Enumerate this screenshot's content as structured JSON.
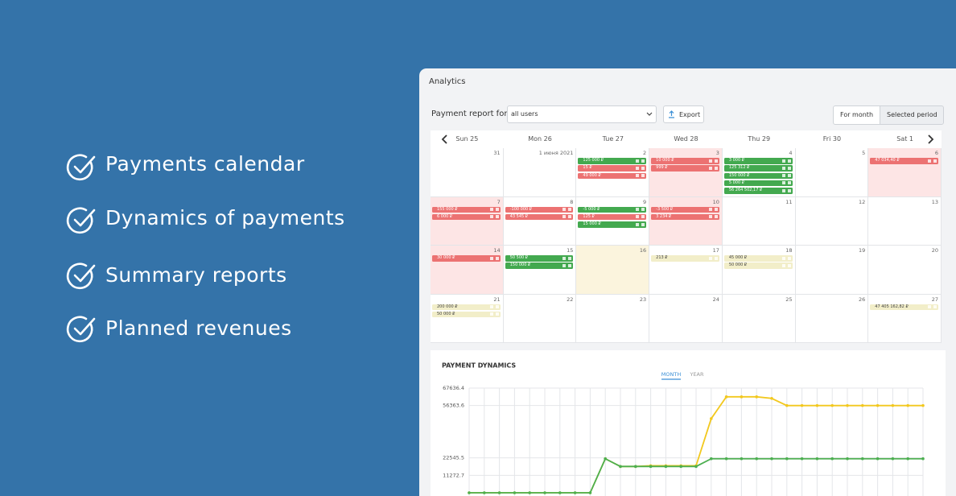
{
  "features": [
    "Payments calendar",
    "Dynamics of payments",
    "Summary reports",
    "Planned revenues"
  ],
  "panel": {
    "title": "Analytics",
    "report_label": "Payment report for",
    "user_select": "all users",
    "export": "Export",
    "tabs": [
      "For month",
      "Selected period"
    ]
  },
  "calendar": {
    "days": [
      "Sun 25",
      "Mon 26",
      "Tue 27",
      "Wed 28",
      "Thu 29",
      "Fri 30",
      "Sat 1"
    ],
    "weeks": [
      [
        {
          "date": "31"
        },
        {
          "date": "1 июня 2021"
        },
        {
          "date": "2",
          "entries": [
            {
              "amount": "125 000 ₽",
              "status": "paid"
            },
            {
              "amount": "15 ₽",
              "status": "overdue"
            },
            {
              "amount": "49 000 ₽",
              "status": "overdue"
            }
          ]
        },
        {
          "date": "3",
          "highlight": "overdue",
          "entries": [
            {
              "amount": "10 000 ₽",
              "status": "overdue"
            },
            {
              "amount": "999 ₽",
              "status": "overdue"
            }
          ]
        },
        {
          "date": "4",
          "entries": [
            {
              "amount": "3 000 ₽",
              "status": "paid"
            },
            {
              "amount": "125 312 ₽",
              "status": "paid"
            },
            {
              "amount": "150 000 ₽",
              "status": "paid"
            },
            {
              "amount": "5 000 ₽",
              "status": "paid"
            },
            {
              "amount": "56 264 502,17 ₽",
              "status": "paid"
            }
          ]
        },
        {
          "date": "5"
        },
        {
          "date": "6",
          "highlight": "overdue",
          "entries": [
            {
              "amount": "47 034,40 ₽",
              "status": "overdue"
            }
          ]
        }
      ],
      [
        {
          "date": "7",
          "highlight": "overdue",
          "entries": [
            {
              "amount": "155 000 ₽",
              "status": "overdue"
            },
            {
              "amount": "6 000 ₽",
              "status": "overdue"
            }
          ]
        },
        {
          "date": "8",
          "entries": [
            {
              "amount": "-100 000 ₽",
              "status": "overdue"
            },
            {
              "amount": "43 545 ₽",
              "status": "overdue"
            }
          ]
        },
        {
          "date": "9",
          "entries": [
            {
              "amount": "-5 000 ₽",
              "status": "paid"
            },
            {
              "amount": "125 ₽",
              "status": "overdue"
            },
            {
              "amount": "15 000 ₽",
              "status": "paid"
            }
          ]
        },
        {
          "date": "10",
          "highlight": "overdue",
          "entries": [
            {
              "amount": "-3 500 ₽",
              "status": "overdue"
            },
            {
              "amount": "3 234 ₽",
              "status": "overdue"
            }
          ]
        },
        {
          "date": "11"
        },
        {
          "date": "12"
        },
        {
          "date": "13"
        }
      ],
      [
        {
          "date": "14",
          "highlight": "overdue",
          "entries": [
            {
              "amount": "30 000 ₽",
              "status": "overdue"
            }
          ]
        },
        {
          "date": "15",
          "entries": [
            {
              "amount": "50 500 ₽",
              "status": "paid"
            },
            {
              "amount": "150 000 ₽",
              "status": "paid"
            }
          ]
        },
        {
          "date": "16",
          "highlight": "today"
        },
        {
          "date": "17",
          "entries": [
            {
              "amount": "213 ₽",
              "status": "planned"
            }
          ]
        },
        {
          "date": "18",
          "entries": [
            {
              "amount": "45 000 ₽",
              "status": "planned"
            },
            {
              "amount": "50 000 ₽",
              "status": "planned"
            }
          ]
        },
        {
          "date": "19"
        },
        {
          "date": "20"
        }
      ],
      [
        {
          "date": "21",
          "entries": [
            {
              "amount": "200 000 ₽",
              "status": "planned"
            },
            {
              "amount": "50 000 ₽",
              "status": "planned"
            }
          ]
        },
        {
          "date": "22"
        },
        {
          "date": "23"
        },
        {
          "date": "24"
        },
        {
          "date": "25"
        },
        {
          "date": "26"
        },
        {
          "date": "27",
          "entries": [
            {
              "amount": "47 405 162,82 ₽",
              "status": "planned"
            }
          ]
        }
      ]
    ]
  },
  "chart_data": {
    "type": "line",
    "title": "PAYMENT DYNAMICS",
    "periods": [
      "MONTH",
      "YEAR"
    ],
    "categories": [
      null,
      null,
      null,
      null,
      null,
      null,
      null,
      null,
      null,
      null,
      null,
      null,
      null,
      null,
      null,
      null,
      null,
      null,
      null,
      null,
      null,
      null,
      null,
      null,
      null,
      null,
      null,
      null,
      null,
      null,
      null
    ],
    "series": [
      {
        "color": "#f2c81e",
        "values": [
          0,
          0,
          0,
          0,
          0,
          0,
          0,
          0,
          0,
          22000,
          17000,
          17000,
          17500,
          17500,
          17500,
          17500,
          47900,
          62000,
          62000,
          62000,
          61000,
          56364,
          56364,
          56364,
          56364,
          56364,
          56364,
          56364,
          56364,
          56364,
          56364
        ]
      },
      {
        "color": "#4caf50",
        "values": [
          0,
          0,
          0,
          0,
          0,
          0,
          0,
          0,
          0,
          22000,
          17000,
          17000,
          17000,
          17000,
          17000,
          17000,
          22000,
          22000,
          22000,
          22000,
          22000,
          22000,
          22000,
          22000,
          22000,
          22000,
          22000,
          22000,
          22000,
          22000,
          22000
        ]
      }
    ],
    "ylim": [
      0,
      67636.4
    ],
    "yticks": [
      67636.4,
      56363.6,
      22545.5,
      11272.7
    ],
    "grid": true
  }
}
